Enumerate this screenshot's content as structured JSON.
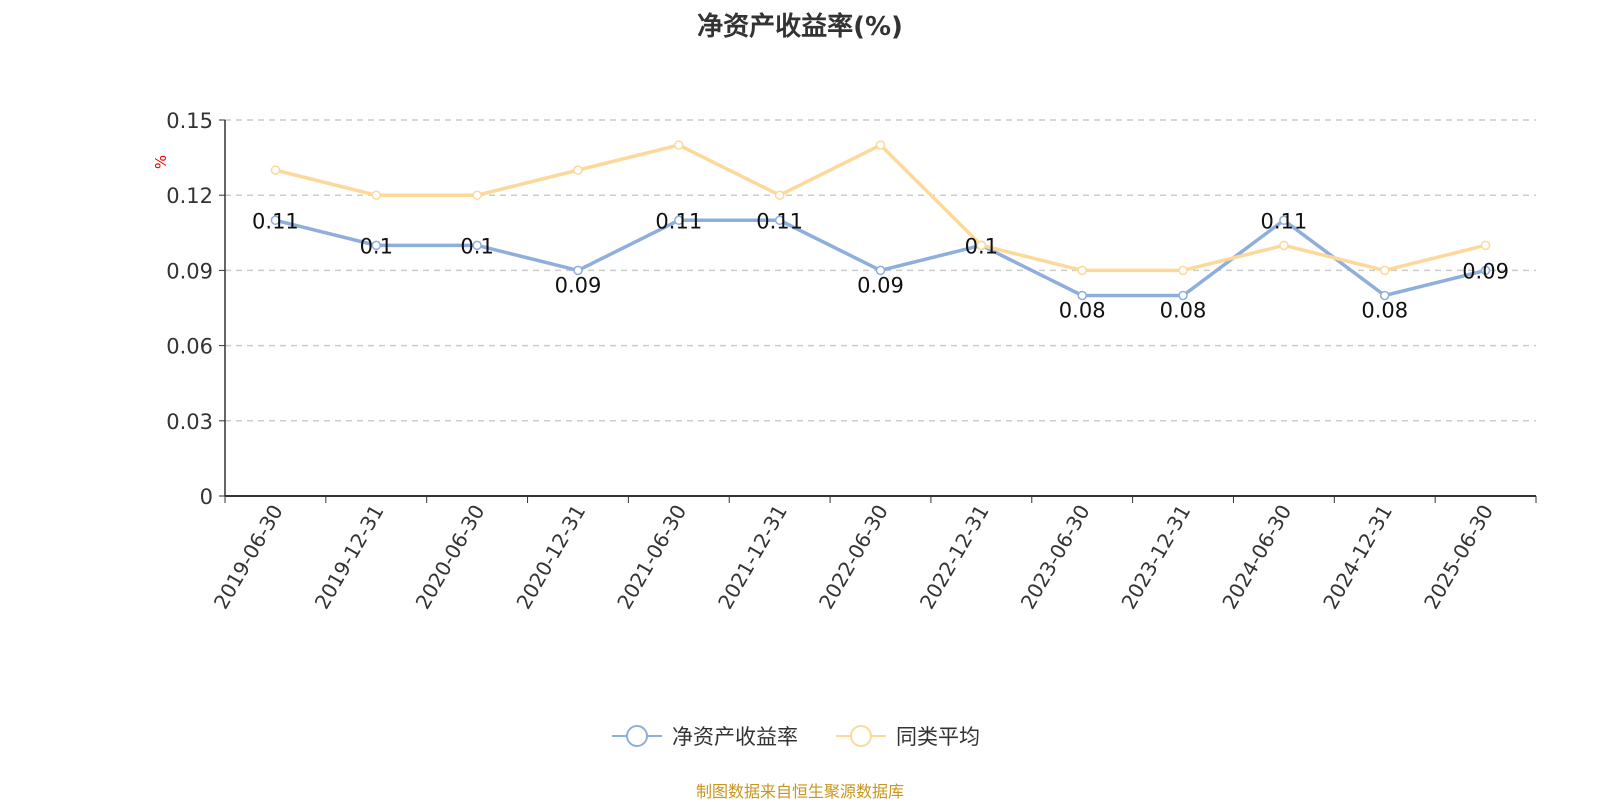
{
  "chart_data": {
    "type": "line",
    "title": "净资产收益率(%)",
    "ylabel": "%",
    "ylim": [
      0,
      0.15
    ],
    "yticks": [
      "0",
      "0.03",
      "0.06",
      "0.09",
      "0.12",
      "0.15"
    ],
    "grid": true,
    "legend_position": "bottom",
    "categories": [
      "2019-06-30",
      "2019-12-31",
      "2020-06-30",
      "2020-12-31",
      "2021-06-30",
      "2021-12-31",
      "2022-06-30",
      "2022-12-31",
      "2023-06-30",
      "2023-12-31",
      "2024-06-30",
      "2024-12-31",
      "2025-06-30"
    ],
    "series": [
      {
        "name": "净资产收益率",
        "color": "#8eaedb",
        "values": [
          0.11,
          0.1,
          0.1,
          0.09,
          0.11,
          0.11,
          0.09,
          0.1,
          0.08,
          0.08,
          0.11,
          0.08,
          0.09
        ],
        "labels": [
          "0.11",
          "0.1",
          "0.1",
          "0.09",
          "0.11",
          "0.11",
          "0.09",
          "0.1",
          "0.08",
          "0.08",
          "0.11",
          "0.08",
          "0.09"
        ]
      },
      {
        "name": "同类平均",
        "color": "#fcd99a",
        "values": [
          0.13,
          0.12,
          0.12,
          0.13,
          0.14,
          0.12,
          0.14,
          0.1,
          0.09,
          0.09,
          0.1,
          0.09,
          0.1
        ]
      }
    ]
  },
  "footer": "制图数据来自恒生聚源数据库"
}
